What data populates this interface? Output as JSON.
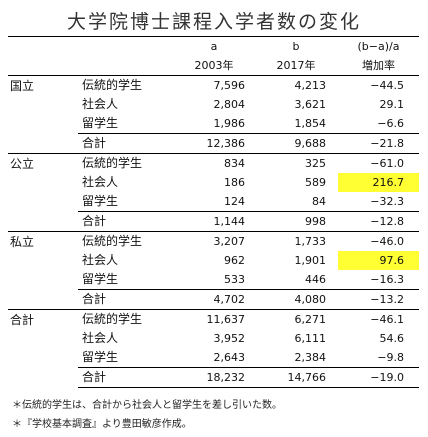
{
  "title": "大学院博士課程入学者数の変化",
  "colors": {
    "highlight": "#ffff33"
  },
  "chart_data": {
    "type": "table",
    "title": "大学院博士課程入学者数の変化",
    "headers": {
      "col2_top": "a",
      "col2": "2003年",
      "col3_top": "b",
      "col3": "2017年",
      "col4_top": "(b−a)/a",
      "col4": "増加率"
    },
    "groups": [
      {
        "name": "国立",
        "rows": [
          {
            "category": "伝統的学生",
            "v2003": "7,596",
            "v2017": "4,213",
            "rate": "−44.5"
          },
          {
            "category": "社会人",
            "v2003": "2,804",
            "v2017": "3,621",
            "rate": "29.1"
          },
          {
            "category": "留学生",
            "v2003": "1,986",
            "v2017": "1,854",
            "rate": "−6.6"
          },
          {
            "category": "合計",
            "v2003": "12,386",
            "v2017": "9,688",
            "rate": "−21.8"
          }
        ]
      },
      {
        "name": "公立",
        "rows": [
          {
            "category": "伝統的学生",
            "v2003": "834",
            "v2017": "325",
            "rate": "−61.0"
          },
          {
            "category": "社会人",
            "v2003": "186",
            "v2017": "589",
            "rate": "216.7"
          },
          {
            "category": "留学生",
            "v2003": "124",
            "v2017": "84",
            "rate": "−32.3"
          },
          {
            "category": "合計",
            "v2003": "1,144",
            "v2017": "998",
            "rate": "−12.8"
          }
        ]
      },
      {
        "name": "私立",
        "rows": [
          {
            "category": "伝統的学生",
            "v2003": "3,207",
            "v2017": "1,733",
            "rate": "−46.0"
          },
          {
            "category": "社会人",
            "v2003": "962",
            "v2017": "1,901",
            "rate": "97.6"
          },
          {
            "category": "留学生",
            "v2003": "533",
            "v2017": "446",
            "rate": "−16.3"
          },
          {
            "category": "合計",
            "v2003": "4,702",
            "v2017": "4,080",
            "rate": "−13.2"
          }
        ]
      },
      {
        "name": "合計",
        "rows": [
          {
            "category": "伝統的学生",
            "v2003": "11,637",
            "v2017": "6,271",
            "rate": "−46.1"
          },
          {
            "category": "社会人",
            "v2003": "3,952",
            "v2017": "6,111",
            "rate": "54.6"
          },
          {
            "category": "留学生",
            "v2003": "2,643",
            "v2017": "2,384",
            "rate": "−9.8"
          },
          {
            "category": "合計",
            "v2003": "18,232",
            "v2017": "14,766",
            "rate": "−19.0"
          }
        ]
      }
    ],
    "highlighted_cells": [
      "公立/社会人/rate",
      "私立/社会人/rate"
    ]
  },
  "footnotes": [
    "＊伝統的学生は、合計から社会人と留学生を差し引いた数。",
    "＊『学校基本調査』より豊田敏彦作成。"
  ]
}
